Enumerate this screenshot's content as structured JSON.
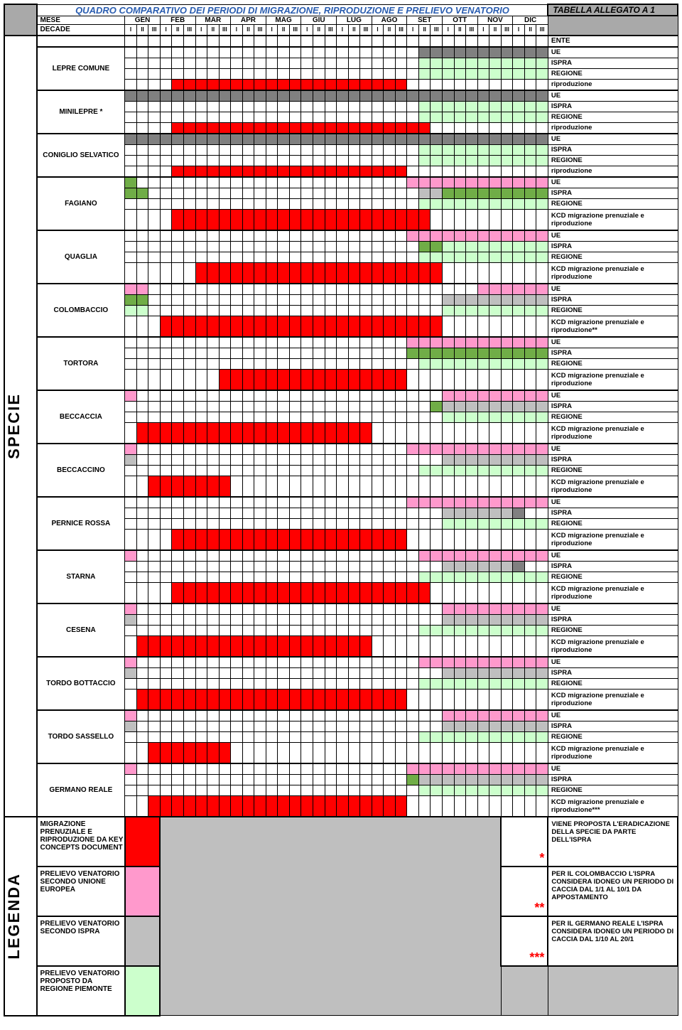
{
  "title": "QUADRO COMPARATIVO DEI PERIODI DI MIGRAZIONE, RIPRODUZIONE E PRELIEVO VENATORIO",
  "annex": "TABELLA ALLEGATO A 1",
  "mese_label": "MESE",
  "decade_label": "DECADE",
  "ente_header": "ENTE",
  "months": [
    "GEN",
    "FEB",
    "MAR",
    "APR",
    "MAG",
    "GIU",
    "LUG",
    "AGO",
    "SET",
    "OTT",
    "NOV",
    "DIC"
  ],
  "decades": [
    "I",
    "II",
    "III"
  ],
  "side_specie": "SPECIE",
  "side_legenda": "LEGENDA",
  "colors": {
    "corner": "#a9a9a9",
    "grey": "#808080",
    "lgrey": "#bfbfbf",
    "green": "#ccffcc",
    "olive": "#92d050",
    "darkgreen": "#70ad47",
    "pink": "#ff99cc",
    "red": "#ff0000",
    "bg_legend": "#bfbfbf"
  },
  "ente_labels": {
    "ue": "UE",
    "ispra": "ISPRA",
    "regione": "REGIONE",
    "riprod": "riproduzione",
    "kcd": "KCD migrazione prenuziale e riproduzione",
    "kcd2": "KCD migrazione prenuziale e riproduzione**",
    "kcd3": "KCD migrazione prenuziale e riproduzione***"
  },
  "legend": [
    {
      "label": "MIGRAZIONE PRENUZIALE E RIPRODUZIONE DA KEY CONCEPTS DOCUMENT",
      "swatch": "#ff0000"
    },
    {
      "label": "PRELIEVO VENATORIO SECONDO UNIONE EUROPEA",
      "swatch": "#ff99cc"
    },
    {
      "label": "PRELIEVO VENATORIO SECONDO ISPRA",
      "swatch": "#bfbfbf"
    },
    {
      "label": "PRELIEVO VENATORIO PROPOSTO DA REGIONE PIEMONTE",
      "swatch": "#ccffcc"
    }
  ],
  "notes": [
    {
      "star": "*",
      "text": "VIENE PROPOSTA L'ERADICAZIONE DELLA SPECIE DA PARTE DELL'ISPRA"
    },
    {
      "star": "**",
      "text": "PER IL COLOMBACCIO L'ISPRA CONSIDERA IDONEO UN PERIODO DI CACCIA DAL 1/1 AL 10/1 DA APPOSTAMENTO"
    },
    {
      "star": "***",
      "text": "PER IL GERMANO REALE L'ISPRA CONSIDERA IDONEO UN PERIODO DI CACCIA DAL 1/10 AL 20/1"
    }
  ],
  "species": [
    {
      "name": "LEPRE COMUNE",
      "rows": [
        {
          "ente": "ue",
          "cells": {
            "25-35": "grey"
          }
        },
        {
          "ente": "ispra",
          "cells": {
            "25-35": "green"
          }
        },
        {
          "ente": "regione",
          "cells": {
            "25-35": "green"
          }
        },
        {
          "ente": "riprod",
          "cells": {
            "4-23": "red"
          },
          "tall": false
        }
      ]
    },
    {
      "name": "MINILEPRE *",
      "rows": [
        {
          "ente": "ue",
          "cells": {
            "0-35": "grey"
          }
        },
        {
          "ente": "ispra",
          "cells": {
            "25-35": "green"
          }
        },
        {
          "ente": "regione",
          "cells": {
            "25-35": "green"
          }
        },
        {
          "ente": "riprod",
          "cells": {
            "4-25": "red"
          }
        }
      ]
    },
    {
      "name": "CONIGLIO SELVATICO",
      "rows": [
        {
          "ente": "ue",
          "cells": {
            "0-35": "grey"
          }
        },
        {
          "ente": "ispra",
          "cells": {
            "25-35": "green"
          }
        },
        {
          "ente": "regione",
          "cells": {
            "25-35": "green"
          }
        },
        {
          "ente": "riprod",
          "cells": {
            "4-23": "red"
          }
        }
      ]
    },
    {
      "name": "FAGIANO",
      "rows": [
        {
          "ente": "ue",
          "cells": {
            "0-0": "darkgreen",
            "24-24": "pink",
            "25-35": "pink"
          }
        },
        {
          "ente": "ispra",
          "cells": {
            "0-1": "darkgreen",
            "25-26": "lgrey",
            "27-35": "darkgreen"
          }
        },
        {
          "ente": "regione",
          "cells": {
            "25-35": "green"
          }
        },
        {
          "ente": "kcd",
          "cells": {
            "4-25": "red"
          },
          "tall": true
        }
      ]
    },
    {
      "name": "QUAGLIA",
      "rows": [
        {
          "ente": "ue",
          "cells": {
            "24-35": "pink"
          }
        },
        {
          "ente": "ispra",
          "cells": {
            "25-26": "darkgreen",
            "27-35": "green"
          }
        },
        {
          "ente": "regione",
          "cells": {
            "25-35": "green"
          }
        },
        {
          "ente": "kcd",
          "cells": {
            "6-26": "red"
          },
          "tall": true
        }
      ]
    },
    {
      "name": "COLOMBACCIO",
      "rows": [
        {
          "ente": "ue",
          "cells": {
            "0-1": "pink",
            "30-35": "pink"
          }
        },
        {
          "ente": "ispra",
          "cells": {
            "0-1": "darkgreen",
            "27-35": "lgrey"
          }
        },
        {
          "ente": "regione",
          "cells": {
            "0-1": "green",
            "27-35": "green"
          }
        },
        {
          "ente": "kcd2",
          "cells": {
            "3-26": "red"
          },
          "tall": true
        }
      ]
    },
    {
      "name": "TORTORA",
      "rows": [
        {
          "ente": "ue",
          "cells": {
            "24-35": "pink"
          }
        },
        {
          "ente": "ispra",
          "cells": {
            "24-26": "darkgreen",
            "27-35": "darkgreen"
          }
        },
        {
          "ente": "regione",
          "cells": {
            "25-35": "green"
          }
        },
        {
          "ente": "kcd",
          "cells": {
            "8-23": "red"
          },
          "tall": true
        }
      ]
    },
    {
      "name": "BECCACCIA",
      "rows": [
        {
          "ente": "ue",
          "cells": {
            "0-0": "pink",
            "27-35": "pink"
          }
        },
        {
          "ente": "ispra",
          "cells": {
            "26-26": "darkgreen",
            "27-35": "lgrey"
          }
        },
        {
          "ente": "regione",
          "cells": {
            "27-35": "green"
          }
        },
        {
          "ente": "kcd",
          "cells": {
            "1-20": "red"
          },
          "tall": true
        }
      ]
    },
    {
      "name": "BECCACCINO",
      "rows": [
        {
          "ente": "ue",
          "cells": {
            "0-0": "pink",
            "24-35": "pink"
          }
        },
        {
          "ente": "ispra",
          "cells": {
            "0-0": "lgrey",
            "27-35": "lgrey"
          }
        },
        {
          "ente": "regione",
          "cells": {
            "25-35": "green"
          }
        },
        {
          "ente": "kcd",
          "cells": {
            "2-8": "red"
          },
          "tall": true
        }
      ]
    },
    {
      "name": "PERNICE ROSSA",
      "rows": [
        {
          "ente": "ue",
          "cells": {
            "24-35": "pink"
          }
        },
        {
          "ente": "ispra",
          "cells": {
            "27-32": "lgrey",
            "33-33": "grey"
          }
        },
        {
          "ente": "regione",
          "cells": {
            "27-35": "green"
          }
        },
        {
          "ente": "kcd",
          "cells": {
            "4-23": "red"
          },
          "tall": true
        }
      ]
    },
    {
      "name": "STARNA",
      "rows": [
        {
          "ente": "ue",
          "cells": {
            "0-0": "pink",
            "25-35": "pink"
          }
        },
        {
          "ente": "ispra",
          "cells": {
            "27-32": "lgrey",
            "33-33": "grey"
          }
        },
        {
          "ente": "regione",
          "cells": {
            "25-35": "green"
          }
        },
        {
          "ente": "kcd",
          "cells": {
            "4-25": "red"
          },
          "tall": true
        }
      ]
    },
    {
      "name": "CESENA",
      "rows": [
        {
          "ente": "ue",
          "cells": {
            "0-0": "pink",
            "27-35": "pink"
          }
        },
        {
          "ente": "ispra",
          "cells": {
            "0-0": "lgrey",
            "27-35": "lgrey"
          }
        },
        {
          "ente": "regione",
          "cells": {
            "25-35": "green"
          }
        },
        {
          "ente": "kcd",
          "cells": {
            "1-20": "red"
          },
          "tall": true
        }
      ]
    },
    {
      "name": "TORDO BOTTACCIO",
      "rows": [
        {
          "ente": "ue",
          "cells": {
            "0-0": "pink",
            "25-35": "pink"
          }
        },
        {
          "ente": "ispra",
          "cells": {
            "0-0": "lgrey",
            "27-35": "lgrey"
          }
        },
        {
          "ente": "regione",
          "cells": {
            "25-35": "green"
          }
        },
        {
          "ente": "kcd",
          "cells": {
            "1-23": "red"
          },
          "tall": true
        }
      ]
    },
    {
      "name": "TORDO SASSELLO",
      "rows": [
        {
          "ente": "ue",
          "cells": {
            "0-0": "pink",
            "27-35": "pink"
          }
        },
        {
          "ente": "ispra",
          "cells": {
            "0-0": "lgrey",
            "27-35": "lgrey"
          }
        },
        {
          "ente": "regione",
          "cells": {
            "25-35": "green"
          }
        },
        {
          "ente": "kcd",
          "cells": {
            "2-8": "red"
          },
          "tall": true
        }
      ]
    },
    {
      "name": "GERMANO REALE",
      "rows": [
        {
          "ente": "ue",
          "cells": {
            "0-0": "pink",
            "24-35": "pink"
          }
        },
        {
          "ente": "ispra",
          "cells": {
            "24-24": "darkgreen",
            "25-35": "lgrey"
          }
        },
        {
          "ente": "regione",
          "cells": {
            "25-35": "green"
          }
        },
        {
          "ente": "kcd3",
          "cells": {
            "2-23": "red"
          },
          "tall": true
        }
      ]
    }
  ]
}
